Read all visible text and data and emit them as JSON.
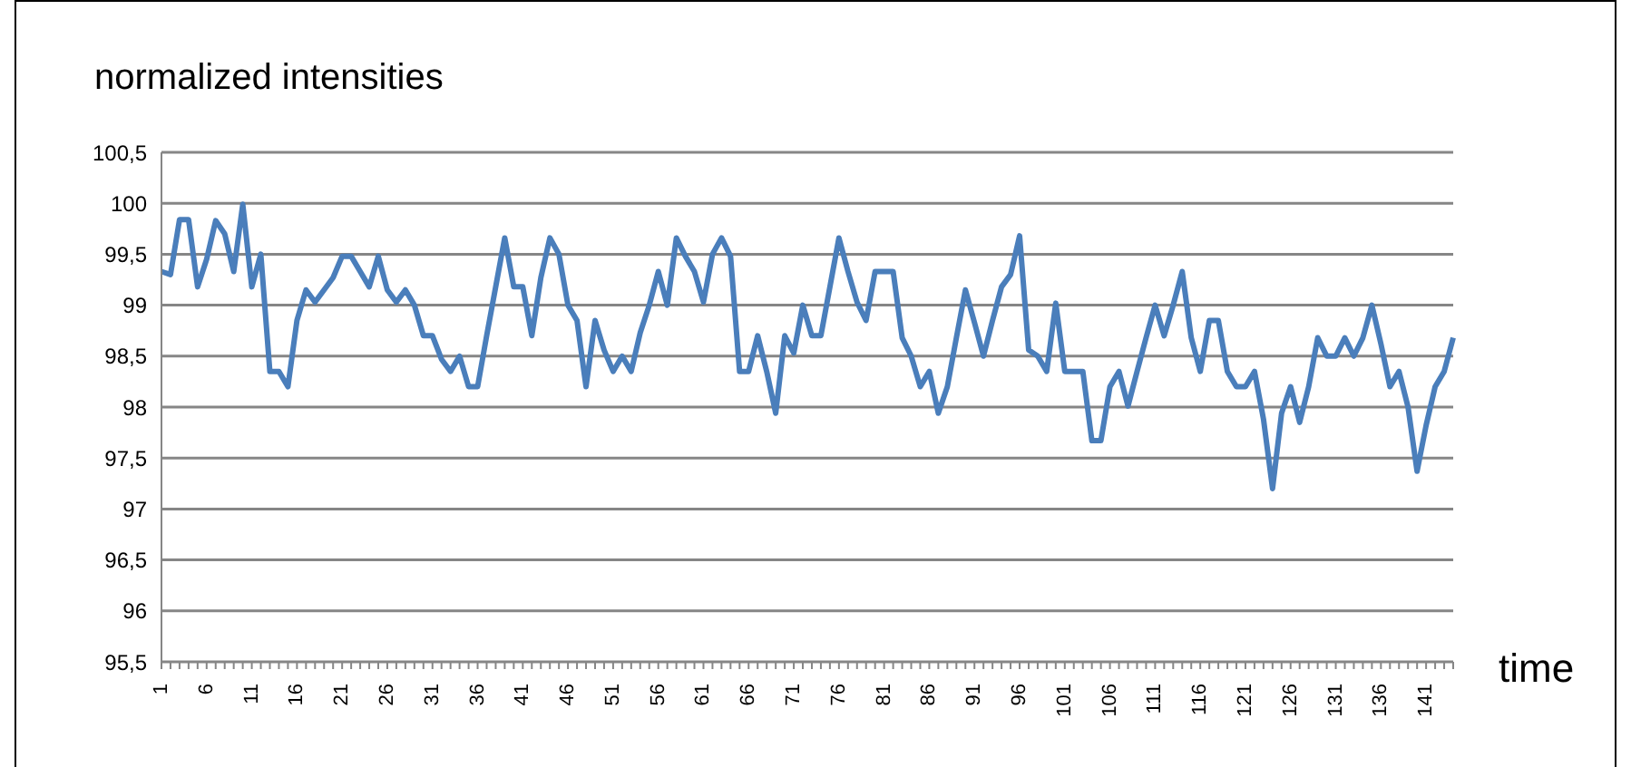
{
  "chart_data": {
    "type": "line",
    "ylabel": "normalized intensities",
    "xlabel": "time",
    "categories": [
      "1",
      null,
      null,
      null,
      null,
      "6",
      null,
      null,
      null,
      null,
      "11",
      null,
      null,
      null,
      null,
      "16",
      null,
      null,
      null,
      null,
      "21",
      null,
      null,
      null,
      null,
      "26",
      null,
      null,
      null,
      null,
      "31",
      null,
      null,
      null,
      null,
      "36",
      null,
      null,
      null,
      null,
      "41",
      null,
      null,
      null,
      null,
      "46",
      null,
      null,
      null,
      null,
      "51",
      null,
      null,
      null,
      null,
      "56",
      null,
      null,
      null,
      null,
      "61",
      null,
      null,
      null,
      null,
      "66",
      null,
      null,
      null,
      null,
      "71",
      null,
      null,
      null,
      null,
      "76",
      null,
      null,
      null,
      null,
      "81",
      null,
      null,
      null,
      null,
      "86",
      null,
      null,
      null,
      null,
      "91",
      null,
      null,
      null,
      null,
      "96",
      null,
      null,
      null,
      null,
      "101",
      null,
      null,
      null,
      null,
      "106",
      null,
      null,
      null,
      null,
      "111",
      null,
      null,
      null,
      null,
      "116",
      null,
      null,
      null,
      null,
      "121",
      null,
      null,
      null,
      null,
      "126",
      null,
      null,
      null,
      null,
      "131",
      null,
      null,
      null,
      null,
      "136",
      null,
      null,
      null,
      null,
      "141",
      null,
      null,
      null
    ],
    "series": [
      {
        "color": "#4a7ebb",
        "values": [
          99.33,
          99.3,
          99.84,
          99.84,
          99.18,
          99.45,
          99.83,
          99.7,
          99.33,
          99.99,
          99.18,
          99.5,
          98.35,
          98.35,
          98.2,
          98.85,
          99.15,
          99.03,
          99.15,
          99.27,
          99.48,
          99.48,
          99.33,
          99.18,
          99.48,
          99.15,
          99.03,
          99.15,
          99.0,
          98.7,
          98.7,
          98.47,
          98.35,
          98.5,
          98.2,
          98.2,
          98.7,
          99.18,
          99.66,
          99.18,
          99.18,
          98.7,
          99.27,
          99.66,
          99.5,
          99.0,
          98.85,
          98.2,
          98.85,
          98.56,
          98.35,
          98.5,
          98.35,
          98.73,
          99.0,
          99.33,
          99.0,
          99.66,
          99.48,
          99.33,
          99.03,
          99.5,
          99.66,
          99.48,
          98.35,
          98.35,
          98.7,
          98.35,
          97.94,
          98.7,
          98.53,
          99.0,
          98.7,
          98.7,
          99.18,
          99.66,
          99.33,
          99.03,
          98.85,
          99.33,
          99.33,
          99.33,
          98.68,
          98.5,
          98.2,
          98.35,
          97.94,
          98.2,
          98.68,
          99.15,
          98.83,
          98.5,
          98.85,
          99.18,
          99.3,
          99.68,
          98.56,
          98.5,
          98.35,
          99.02,
          98.35,
          98.35,
          98.35,
          97.67,
          97.67,
          98.2,
          98.35,
          98.01,
          98.35,
          98.68,
          99.0,
          98.7,
          99.0,
          99.33,
          98.68,
          98.35,
          98.85,
          98.85,
          98.35,
          98.2,
          98.2,
          98.35,
          97.88,
          97.2,
          97.94,
          98.2,
          97.85,
          98.2,
          98.68,
          98.5,
          98.5,
          98.68,
          98.5,
          98.68,
          99.0,
          98.62,
          98.2,
          98.35,
          98.0,
          97.37,
          97.82,
          98.2,
          98.35,
          98.68
        ]
      }
    ],
    "ylim": [
      95.5,
      100.5
    ],
    "yticks": [
      {
        "value": 95.5,
        "label": "95,5"
      },
      96,
      {
        "value": 96.5,
        "label": "96,5"
      },
      97,
      {
        "value": 97.5,
        "label": "97,5"
      },
      98,
      {
        "value": 98.5,
        "label": "98,5"
      },
      99,
      {
        "value": 99.5,
        "label": "99,5"
      },
      100,
      {
        "value": 100.5,
        "label": "100,5"
      }
    ],
    "grid": "y",
    "legend": false,
    "marker": "none",
    "line_style": "solid"
  }
}
